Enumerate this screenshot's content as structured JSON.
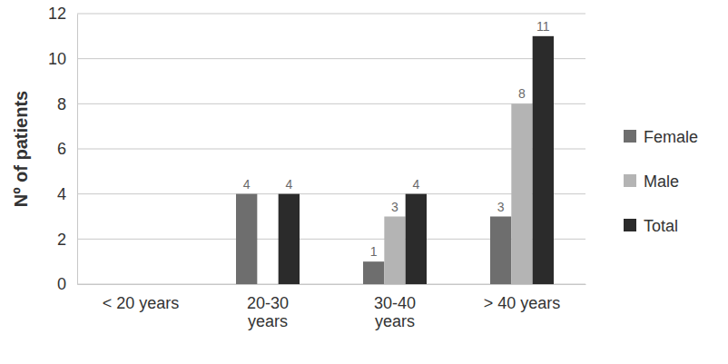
{
  "chart_data": {
    "type": "bar",
    "y_label": "Nº of patients",
    "categories": [
      "< 20 years",
      "20-30 years",
      "30-40 years",
      "> 40 years"
    ],
    "series": [
      {
        "name": "Female",
        "color": "#6e6e6e",
        "values": [
          null,
          4,
          1,
          3
        ]
      },
      {
        "name": "Male",
        "color": "#b4b4b4",
        "values": [
          null,
          null,
          3,
          8
        ]
      },
      {
        "name": "Total",
        "color": "#2b2b2b",
        "values": [
          null,
          4,
          4,
          11
        ]
      }
    ],
    "ylim": [
      0,
      12
    ],
    "yticks": [
      0,
      2,
      4,
      6,
      8,
      10,
      12
    ],
    "grid": true,
    "legend": "right",
    "data_labels": true
  }
}
